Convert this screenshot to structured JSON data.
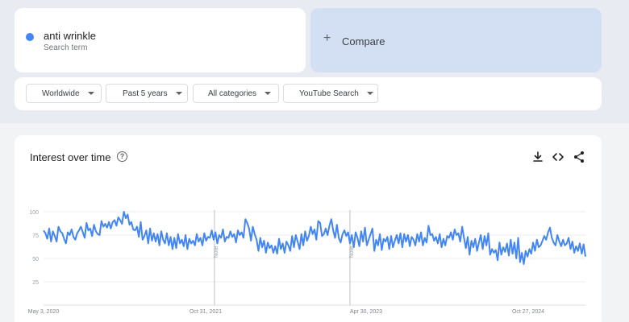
{
  "search_term": {
    "name": "anti wrinkle",
    "subtitle": "Search term",
    "color": "#4285f4"
  },
  "compare": {
    "plus": "+",
    "label": "Compare"
  },
  "filters": [
    {
      "label": "Worldwide"
    },
    {
      "label": "Past 5 years"
    },
    {
      "label": "All categories"
    },
    {
      "label": "YouTube Search"
    }
  ],
  "chart": {
    "title": "Interest over time",
    "help_glyph": "?",
    "tools": [
      "download-icon",
      "embed-icon",
      "share-icon"
    ],
    "note_label": "Note"
  },
  "chart_data": {
    "type": "line",
    "title": "Interest over time",
    "ylim": [
      0,
      100
    ],
    "y_ticks": [
      25,
      50,
      75,
      100
    ],
    "x_ticks": [
      "May 3, 2020",
      "Oct 31, 2021",
      "Apr 30, 2023",
      "Oct 27, 2024"
    ],
    "x_range": [
      "2020-05-03",
      "2025-04-27"
    ],
    "notes": [
      "2021-11-28",
      "2023-02-26"
    ],
    "grid": true,
    "legend": "none",
    "series": [
      {
        "name": "anti wrinkle",
        "color": "#4285f4",
        "values": [
          80,
          77,
          71,
          82,
          68,
          79,
          74,
          68,
          84,
          79,
          77,
          71,
          66,
          78,
          75,
          81,
          73,
          70,
          77,
          80,
          84,
          78,
          72,
          88,
          80,
          82,
          74,
          86,
          79,
          76,
          75,
          90,
          84,
          87,
          83,
          89,
          82,
          89,
          91,
          85,
          94,
          91,
          87,
          100,
          93,
          97,
          86,
          89,
          81,
          80,
          84,
          73,
          89,
          70,
          74,
          80,
          66,
          82,
          69,
          77,
          68,
          76,
          64,
          79,
          70,
          66,
          77,
          64,
          73,
          60,
          72,
          61,
          76,
          66,
          70,
          63,
          75,
          60,
          71,
          66,
          69,
          64,
          76,
          68,
          72,
          64,
          77,
          69,
          73,
          72,
          80,
          70,
          78,
          66,
          75,
          72,
          81,
          68,
          73,
          72,
          79,
          73,
          76,
          67,
          80,
          75,
          78,
          72,
          92,
          88,
          82,
          69,
          84,
          76,
          70,
          58,
          72,
          62,
          69,
          56,
          67,
          61,
          64,
          56,
          63,
          55,
          71,
          60,
          66,
          56,
          68,
          64,
          58,
          74,
          62,
          75,
          68,
          60,
          76,
          64,
          79,
          69,
          74,
          84,
          76,
          81,
          70,
          90,
          88,
          74,
          76,
          82,
          75,
          85,
          92,
          80,
          72,
          86,
          72,
          67,
          76,
          80,
          74,
          78,
          66,
          75,
          62,
          78,
          72,
          63,
          79,
          68,
          83,
          64,
          70,
          76,
          82,
          58,
          70,
          64,
          76,
          59,
          71,
          68,
          73,
          60,
          74,
          62,
          69,
          75,
          66,
          77,
          62,
          76,
          68,
          75,
          63,
          73,
          70,
          64,
          76,
          68,
          78,
          64,
          72,
          67,
          85,
          75,
          76,
          69,
          73,
          66,
          76,
          62,
          71,
          64,
          74,
          72,
          78,
          70,
          81,
          75,
          77,
          68,
          84,
          72,
          61,
          73,
          54,
          69,
          62,
          71,
          58,
          67,
          75,
          60,
          74,
          64,
          77,
          54,
          60,
          56,
          59,
          48,
          67,
          54,
          62,
          57,
          66,
          53,
          70,
          55,
          67,
          50,
          72,
          46,
          56,
          44,
          58,
          52,
          60,
          55,
          67,
          58,
          70,
          62,
          64,
          69,
          74,
          70,
          78,
          83,
          72,
          67,
          64,
          75,
          68,
          63,
          70,
          64,
          66,
          72,
          60,
          68,
          56,
          63,
          58,
          66,
          55,
          65,
          52
        ]
      }
    ]
  }
}
